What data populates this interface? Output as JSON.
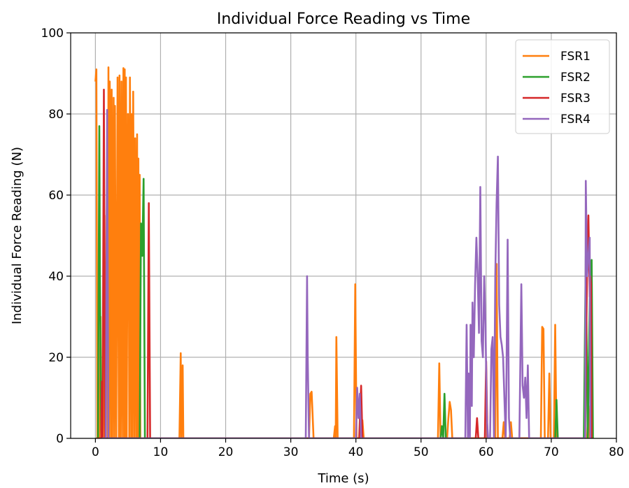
{
  "chart_data": {
    "type": "line",
    "title": "Individual Force Reading vs Time",
    "xlabel": "Time (s)",
    "ylabel": "Individual Force Reading (N)",
    "xlim": [
      -3.8,
      80
    ],
    "ylim": [
      0,
      100
    ],
    "xticks": [
      0,
      10,
      20,
      30,
      40,
      50,
      60,
      70,
      80
    ],
    "yticks": [
      0,
      20,
      40,
      60,
      80,
      100
    ],
    "grid": true,
    "legend_position": "top-right",
    "series": [
      {
        "name": "FSR1",
        "color": "#ff7f0e",
        "points": [
          [
            0,
            88
          ],
          [
            0.15,
            91
          ],
          [
            0.3,
            0
          ],
          [
            0.6,
            0
          ],
          [
            0.8,
            30
          ],
          [
            0.9,
            0
          ],
          [
            1.2,
            0
          ],
          [
            1.4,
            55
          ],
          [
            1.5,
            0
          ],
          [
            1.8,
            65
          ],
          [
            1.9,
            0
          ],
          [
            2.0,
            91.5
          ],
          [
            2.1,
            0
          ],
          [
            2.2,
            88
          ],
          [
            2.3,
            70
          ],
          [
            2.4,
            0
          ],
          [
            2.5,
            86
          ],
          [
            2.6,
            0
          ],
          [
            2.8,
            84
          ],
          [
            2.9,
            0
          ],
          [
            3.0,
            82
          ],
          [
            3.1,
            36
          ],
          [
            3.2,
            0
          ],
          [
            3.4,
            89
          ],
          [
            3.5,
            40
          ],
          [
            3.6,
            0
          ],
          [
            3.7,
            89.5
          ],
          [
            3.8,
            0
          ],
          [
            4.0,
            88
          ],
          [
            4.1,
            0
          ],
          [
            4.3,
            91.3
          ],
          [
            4.4,
            0
          ],
          [
            4.5,
            91
          ],
          [
            4.6,
            0
          ],
          [
            4.7,
            89
          ],
          [
            4.8,
            0
          ],
          [
            5.0,
            80
          ],
          [
            5.1,
            63
          ],
          [
            5.2,
            0
          ],
          [
            5.3,
            89
          ],
          [
            5.4,
            64
          ],
          [
            5.5,
            0
          ],
          [
            5.6,
            80
          ],
          [
            5.7,
            0
          ],
          [
            5.8,
            85.5
          ],
          [
            5.9,
            48
          ],
          [
            6.0,
            0
          ],
          [
            6.1,
            74
          ],
          [
            6.2,
            50
          ],
          [
            6.3,
            0
          ],
          [
            6.4,
            75
          ],
          [
            6.5,
            0
          ],
          [
            6.6,
            69
          ],
          [
            6.7,
            0
          ],
          [
            6.8,
            65
          ],
          [
            6.9,
            0
          ],
          [
            12.9,
            0
          ],
          [
            13.1,
            21
          ],
          [
            13.2,
            0
          ],
          [
            13.4,
            18
          ],
          [
            13.5,
            0
          ],
          [
            32.8,
            0
          ],
          [
            33.0,
            11
          ],
          [
            33.2,
            11.5
          ],
          [
            33.5,
            0
          ],
          [
            36.6,
            0
          ],
          [
            36.8,
            3
          ],
          [
            36.9,
            0
          ],
          [
            37.0,
            25
          ],
          [
            37.2,
            0
          ],
          [
            39.7,
            0
          ],
          [
            39.9,
            38
          ],
          [
            40.1,
            0
          ],
          [
            40.8,
            0
          ],
          [
            41.0,
            4.5
          ],
          [
            41.2,
            0
          ],
          [
            52.6,
            0
          ],
          [
            52.8,
            18.5
          ],
          [
            53.0,
            0
          ],
          [
            54.0,
            0
          ],
          [
            54.2,
            5
          ],
          [
            54.4,
            9
          ],
          [
            54.6,
            7
          ],
          [
            54.8,
            0
          ],
          [
            61.4,
            0
          ],
          [
            61.6,
            43
          ],
          [
            61.8,
            0
          ],
          [
            62.5,
            0
          ],
          [
            62.7,
            4
          ],
          [
            62.9,
            0
          ],
          [
            63.6,
            0
          ],
          [
            63.8,
            4
          ],
          [
            64.0,
            0
          ],
          [
            68.4,
            0
          ],
          [
            68.6,
            27.5
          ],
          [
            68.8,
            27
          ],
          [
            69.0,
            0
          ],
          [
            69.5,
            0
          ],
          [
            69.7,
            16
          ],
          [
            69.9,
            0
          ],
          [
            70.4,
            0
          ],
          [
            70.6,
            28
          ],
          [
            70.8,
            0
          ],
          [
            75.5,
            0
          ],
          [
            75.7,
            8
          ],
          [
            75.9,
            0
          ],
          [
            76.1,
            3.5
          ],
          [
            76.3,
            0
          ]
        ]
      },
      {
        "name": "FSR2",
        "color": "#2ca02c",
        "points": [
          [
            0.1,
            0
          ],
          [
            0.4,
            0
          ],
          [
            0.6,
            77
          ],
          [
            0.7,
            40
          ],
          [
            0.9,
            0
          ],
          [
            6.8,
            0
          ],
          [
            7.0,
            53
          ],
          [
            7.2,
            45
          ],
          [
            7.4,
            64
          ],
          [
            7.6,
            0
          ],
          [
            53.0,
            0
          ],
          [
            53.2,
            3
          ],
          [
            53.4,
            0
          ],
          [
            53.6,
            11
          ],
          [
            53.8,
            0
          ],
          [
            70.6,
            0
          ],
          [
            70.8,
            9.5
          ],
          [
            71.0,
            0
          ],
          [
            75.0,
            0
          ],
          [
            75.3,
            45
          ],
          [
            75.6,
            0
          ],
          [
            76.0,
            43
          ],
          [
            76.2,
            44
          ],
          [
            76.4,
            0
          ]
        ]
      },
      {
        "name": "FSR3",
        "color": "#d62728",
        "points": [
          [
            0.2,
            0
          ],
          [
            0.9,
            0
          ],
          [
            1.0,
            14
          ],
          [
            1.1,
            0
          ],
          [
            1.3,
            86
          ],
          [
            1.5,
            0
          ],
          [
            8.0,
            0
          ],
          [
            8.2,
            58
          ],
          [
            8.4,
            0
          ],
          [
            40.5,
            0
          ],
          [
            40.8,
            13
          ],
          [
            41.0,
            0
          ],
          [
            58.4,
            0
          ],
          [
            58.6,
            5
          ],
          [
            58.8,
            0
          ],
          [
            59.8,
            0
          ],
          [
            60.0,
            19
          ],
          [
            60.2,
            0
          ],
          [
            75.2,
            0
          ],
          [
            75.5,
            43
          ],
          [
            75.7,
            55
          ],
          [
            75.9,
            35
          ],
          [
            76.0,
            40
          ],
          [
            76.1,
            38
          ],
          [
            76.2,
            0
          ]
        ]
      },
      {
        "name": "FSR4",
        "color": "#9467bd",
        "points": [
          [
            1.0,
            0
          ],
          [
            1.4,
            0
          ],
          [
            1.6,
            0
          ],
          [
            1.8,
            81
          ],
          [
            1.9,
            40
          ],
          [
            2.0,
            0
          ],
          [
            31.9,
            0
          ],
          [
            32.3,
            0
          ],
          [
            32.5,
            40
          ],
          [
            32.6,
            20
          ],
          [
            32.8,
            0
          ],
          [
            40.0,
            0
          ],
          [
            40.2,
            12.5
          ],
          [
            40.4,
            5
          ],
          [
            40.6,
            11
          ],
          [
            40.8,
            0
          ],
          [
            56.8,
            0
          ],
          [
            57.0,
            28
          ],
          [
            57.2,
            0
          ],
          [
            57.3,
            16
          ],
          [
            57.5,
            0
          ],
          [
            57.6,
            28
          ],
          [
            57.8,
            8
          ],
          [
            57.9,
            33.5
          ],
          [
            58.1,
            20
          ],
          [
            58.3,
            38
          ],
          [
            58.5,
            49.5
          ],
          [
            58.7,
            40
          ],
          [
            58.9,
            26
          ],
          [
            59.1,
            62
          ],
          [
            59.3,
            24
          ],
          [
            59.5,
            20
          ],
          [
            59.7,
            40
          ],
          [
            59.9,
            28
          ],
          [
            60.1,
            5
          ],
          [
            60.3,
            0
          ],
          [
            60.6,
            0
          ],
          [
            60.8,
            22
          ],
          [
            61.0,
            25
          ],
          [
            61.2,
            0
          ],
          [
            61.4,
            40
          ],
          [
            61.6,
            58
          ],
          [
            61.8,
            69.5
          ],
          [
            62.0,
            33
          ],
          [
            62.2,
            25
          ],
          [
            62.4,
            23
          ],
          [
            62.6,
            20
          ],
          [
            62.8,
            10
          ],
          [
            63.0,
            0
          ],
          [
            63.1,
            12
          ],
          [
            63.3,
            49
          ],
          [
            63.5,
            5
          ],
          [
            63.7,
            0
          ],
          [
            65.1,
            0
          ],
          [
            65.4,
            38
          ],
          [
            65.6,
            13
          ],
          [
            65.8,
            10
          ],
          [
            66.0,
            15
          ],
          [
            66.2,
            5
          ],
          [
            66.4,
            18
          ],
          [
            66.6,
            0
          ],
          [
            75.0,
            0
          ],
          [
            75.2,
            0
          ],
          [
            75.3,
            63.5
          ],
          [
            75.5,
            40
          ],
          [
            75.7,
            45
          ],
          [
            75.9,
            49.5
          ],
          [
            76.0,
            0
          ]
        ]
      }
    ]
  }
}
